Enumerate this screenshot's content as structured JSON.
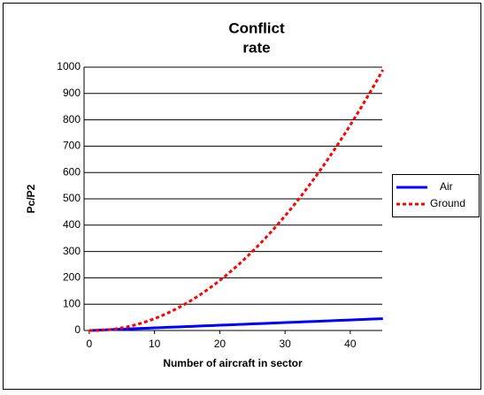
{
  "chart_data": {
    "type": "line",
    "title": [
      "Conflict",
      "rate"
    ],
    "x_label": "Number of aircraft in sector",
    "y_label": "Pc/P2",
    "x": [
      0,
      1,
      2,
      3,
      4,
      5,
      6,
      7,
      8,
      9,
      10,
      11,
      12,
      13,
      14,
      15,
      16,
      17,
      18,
      19,
      20,
      21,
      22,
      23,
      24,
      25,
      26,
      27,
      28,
      29,
      30,
      31,
      32,
      33,
      34,
      35,
      36,
      37,
      38,
      39,
      40,
      41,
      42,
      43,
      44,
      45
    ],
    "series": [
      {
        "name": "Air",
        "color": "#0000ff",
        "dash": false,
        "values": [
          0,
          1,
          2,
          3,
          4,
          5,
          6,
          7,
          8,
          9,
          10,
          11,
          12,
          13,
          14,
          15,
          16,
          17,
          18,
          19,
          20,
          21,
          22,
          23,
          24,
          25,
          26,
          27,
          28,
          29,
          30,
          31,
          32,
          33,
          34,
          35,
          36,
          37,
          38,
          39,
          40,
          41,
          42,
          43,
          44,
          45
        ]
      },
      {
        "name": "Ground",
        "color": "#ff0000",
        "dash": true,
        "values": [
          0,
          0,
          1,
          3,
          6,
          10,
          15,
          21,
          28,
          36,
          45,
          55,
          66,
          78,
          91,
          105,
          120,
          136,
          153,
          171,
          190,
          210,
          231,
          253,
          276,
          300,
          325,
          351,
          378,
          406,
          435,
          465,
          496,
          528,
          561,
          595,
          630,
          666,
          703,
          741,
          780,
          820,
          861,
          903,
          946,
          990
        ]
      }
    ],
    "xlim": [
      -0.8,
      44.9
    ],
    "xticks": [
      0,
      10,
      20,
      30,
      40
    ],
    "ylim": [
      0,
      1000
    ],
    "yticks": [
      0,
      100,
      200,
      300,
      400,
      500,
      600,
      700,
      800,
      900,
      1000
    ],
    "grid": true,
    "legend": "right"
  }
}
